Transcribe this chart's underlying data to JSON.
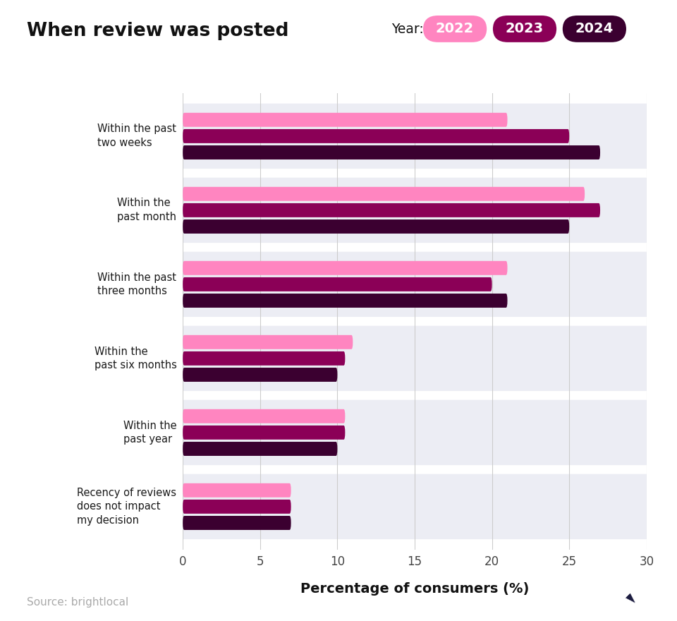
{
  "title": "When review was posted",
  "year_label": "Year:",
  "years": [
    "2022",
    "2023",
    "2024"
  ],
  "year_colors": [
    "#FF85C0",
    "#8B0057",
    "#3B0030"
  ],
  "categories": [
    "Within the past\ntwo weeks",
    "Within the\npast month",
    "Within the past\nthree months",
    "Within the\npast six months",
    "Within the\npast year",
    "Recency of reviews\ndoes not impact\nmy decision"
  ],
  "values": [
    [
      21,
      25,
      27
    ],
    [
      26,
      27,
      25
    ],
    [
      21,
      20,
      21
    ],
    [
      11,
      10.5,
      10
    ],
    [
      10.5,
      10.5,
      10
    ],
    [
      7,
      7,
      7
    ]
  ],
  "bar_colors": [
    "#FF85C0",
    "#8B0057",
    "#3B0030"
  ],
  "xlim": [
    0,
    30
  ],
  "xticks": [
    0,
    5,
    10,
    15,
    20,
    25,
    30
  ],
  "xlabel": "Percentage of consumers (%)",
  "bg_color": "#ffffff",
  "panel_color": "#ECEDF4",
  "source_text": "Source: brightlocal"
}
